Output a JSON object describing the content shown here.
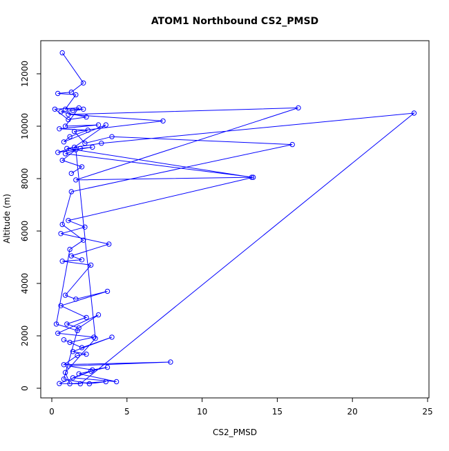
{
  "chart_data": {
    "type": "line",
    "title": "ATOM1 Northbound CS2_PMSD",
    "xlabel": "CS2_PMSD",
    "ylabel": "Altitude (m)",
    "xlim": [
      0,
      25
    ],
    "ylim": [
      0,
      12500
    ],
    "x_ticks": [
      0,
      5,
      10,
      15,
      20,
      25
    ],
    "x_tick_labels": [
      "0",
      "5",
      "10",
      "15",
      "20",
      "25"
    ],
    "y_ticks": [
      0,
      2000,
      4000,
      6000,
      8000,
      10000,
      12000
    ],
    "y_tick_labels": [
      "0",
      "2000",
      "4000",
      "6000",
      "8000",
      "10000",
      "12000"
    ],
    "grid": false,
    "legend": "none",
    "color": "#0000ff",
    "marker": "open-circle",
    "series": [
      {
        "x": [
          0.7,
          2.1,
          1.3,
          0.4,
          1.6,
          0.9,
          2.1,
          1.4,
          0.6,
          2.3,
          1.1,
          0.2,
          1.8,
          0.9,
          3.1,
          0.5,
          2.4,
          1.2,
          0.8,
          3.6,
          1.5,
          0.4,
          2.7,
          1.9,
          0.9,
          13.4,
          1.1,
          2.2,
          0.6,
          3.8,
          1.3,
          2.0,
          0.7,
          2.6,
          0.9,
          1.6,
          3.7,
          0.6,
          2.3,
          1.0,
          1.8,
          3.1,
          0.4,
          2.8,
          1.2,
          0.8,
          2.0,
          4.0,
          1.4,
          2.3,
          1.7,
          0.8,
          7.9,
          1.1,
          2.7,
          3.7,
          1.8,
          4.3,
          1.4,
          2.6,
          0.5,
          1.9,
          24.1,
          3.3,
          1.0,
          13.3,
          1.6,
          16.4,
          1.1,
          7.4,
          1.5,
          2.2,
          4.0,
          16.0,
          1.3,
          0.7,
          2.1,
          1.2,
          0.3,
          1.7,
          0.8,
          2.5,
          3.6,
          1.2,
          0.9,
          2.9,
          1.6,
          0.7,
          2.0,
          1.3
        ],
        "y": [
          12800,
          11650,
          11300,
          11250,
          11200,
          10650,
          10650,
          10600,
          10550,
          10350,
          10250,
          10650,
          10700,
          10000,
          10050,
          9900,
          9850,
          9600,
          9400,
          10050,
          9200,
          9000,
          9200,
          9150,
          8950,
          8050,
          6400,
          6150,
          5900,
          5500,
          5050,
          4900,
          4850,
          4700,
          3550,
          3400,
          3700,
          3150,
          2700,
          2450,
          2300,
          2800,
          2100,
          1950,
          1750,
          1850,
          1550,
          1950,
          1400,
          1300,
          1250,
          900,
          1000,
          850,
          700,
          800,
          550,
          250,
          400,
          650,
          180,
          170,
          10500,
          9350,
          9150,
          8050,
          7950,
          10700,
          10450,
          10200,
          9800,
          9350,
          9600,
          9300,
          7500,
          6250,
          5650,
          5300,
          2450,
          2200,
          350,
          170,
          250,
          170,
          600,
          1900,
          9100,
          8700,
          8450,
          8200
        ]
      }
    ]
  }
}
